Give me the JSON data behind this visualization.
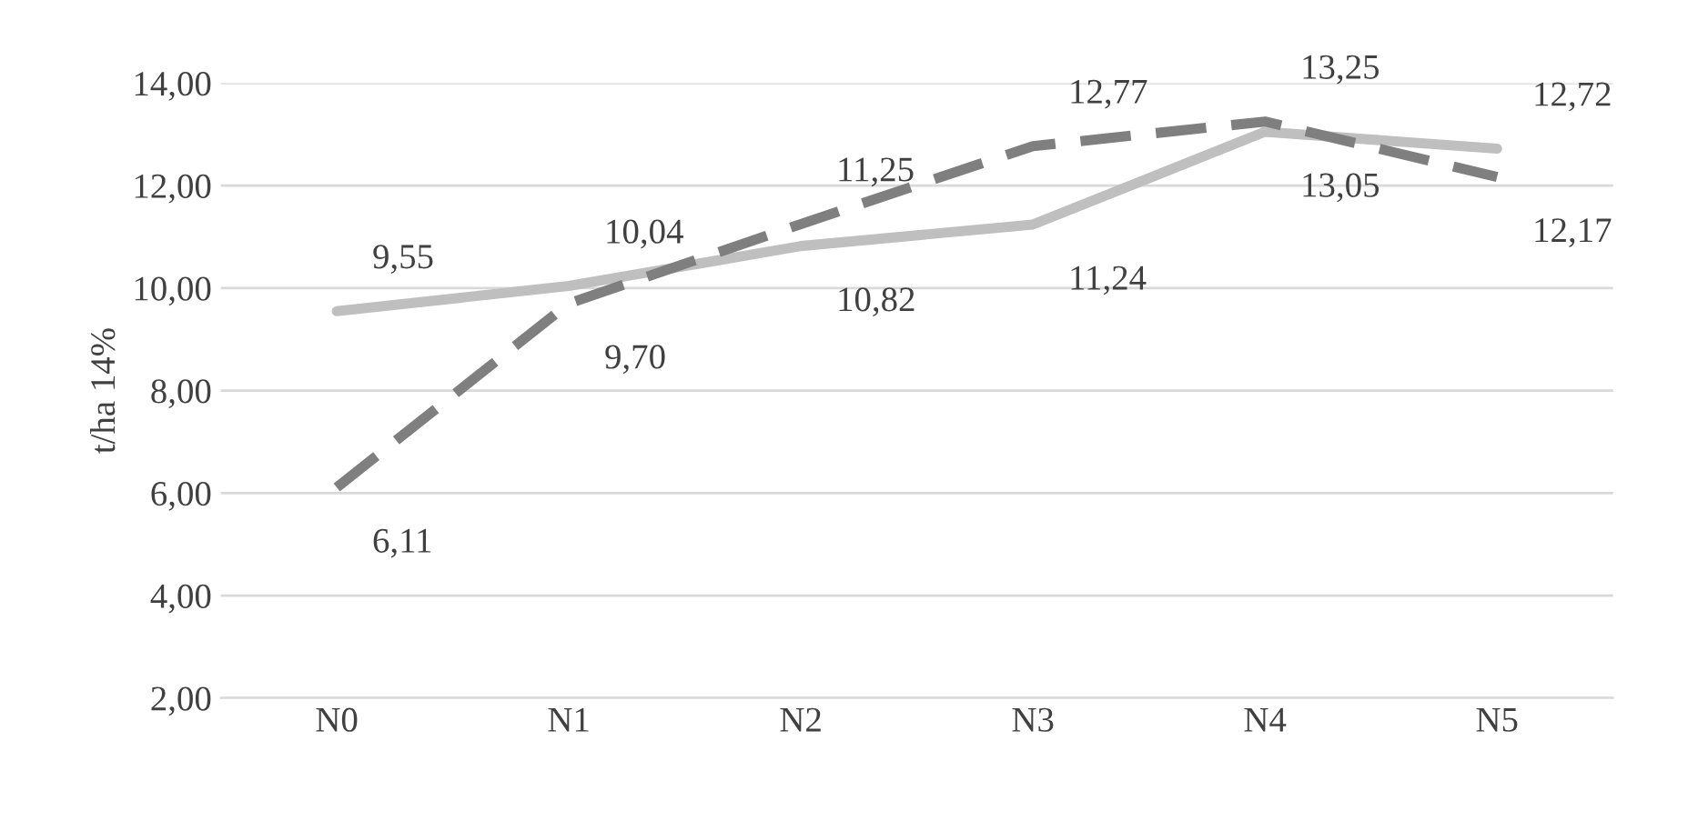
{
  "chart_data": {
    "type": "line",
    "ylabel": "t/ha 14%",
    "categories": [
      "N0",
      "N1",
      "N2",
      "N3",
      "N4",
      "N5"
    ],
    "series": [
      {
        "color": "#bfbfbf",
        "line_style": "solid",
        "values": [
          9.55,
          10.04,
          10.82,
          11.24,
          13.05,
          12.72
        ],
        "value_labels": [
          "9,55",
          "10,04",
          "10,82",
          "11,24",
          "13,05",
          "12,72"
        ]
      },
      {
        "color": "#7f7f7f",
        "line_style": "dashed",
        "values": [
          6.11,
          9.7,
          11.25,
          12.77,
          13.25,
          12.17
        ],
        "value_labels": [
          "6,11",
          "9,70",
          "11,25",
          "12,77",
          "13,25",
          "12,17"
        ]
      }
    ],
    "ylim": [
      2,
      14
    ],
    "yticks": [
      {
        "value": 2,
        "label": "2,00"
      },
      {
        "value": 4,
        "label": "4,00"
      },
      {
        "value": 6,
        "label": "6,00"
      },
      {
        "value": 8,
        "label": "8,00"
      },
      {
        "value": 10,
        "label": "10,00"
      },
      {
        "value": 12,
        "label": "12,00"
      },
      {
        "value": 14,
        "label": "14,00"
      }
    ],
    "grid": "y",
    "marker": "none"
  }
}
